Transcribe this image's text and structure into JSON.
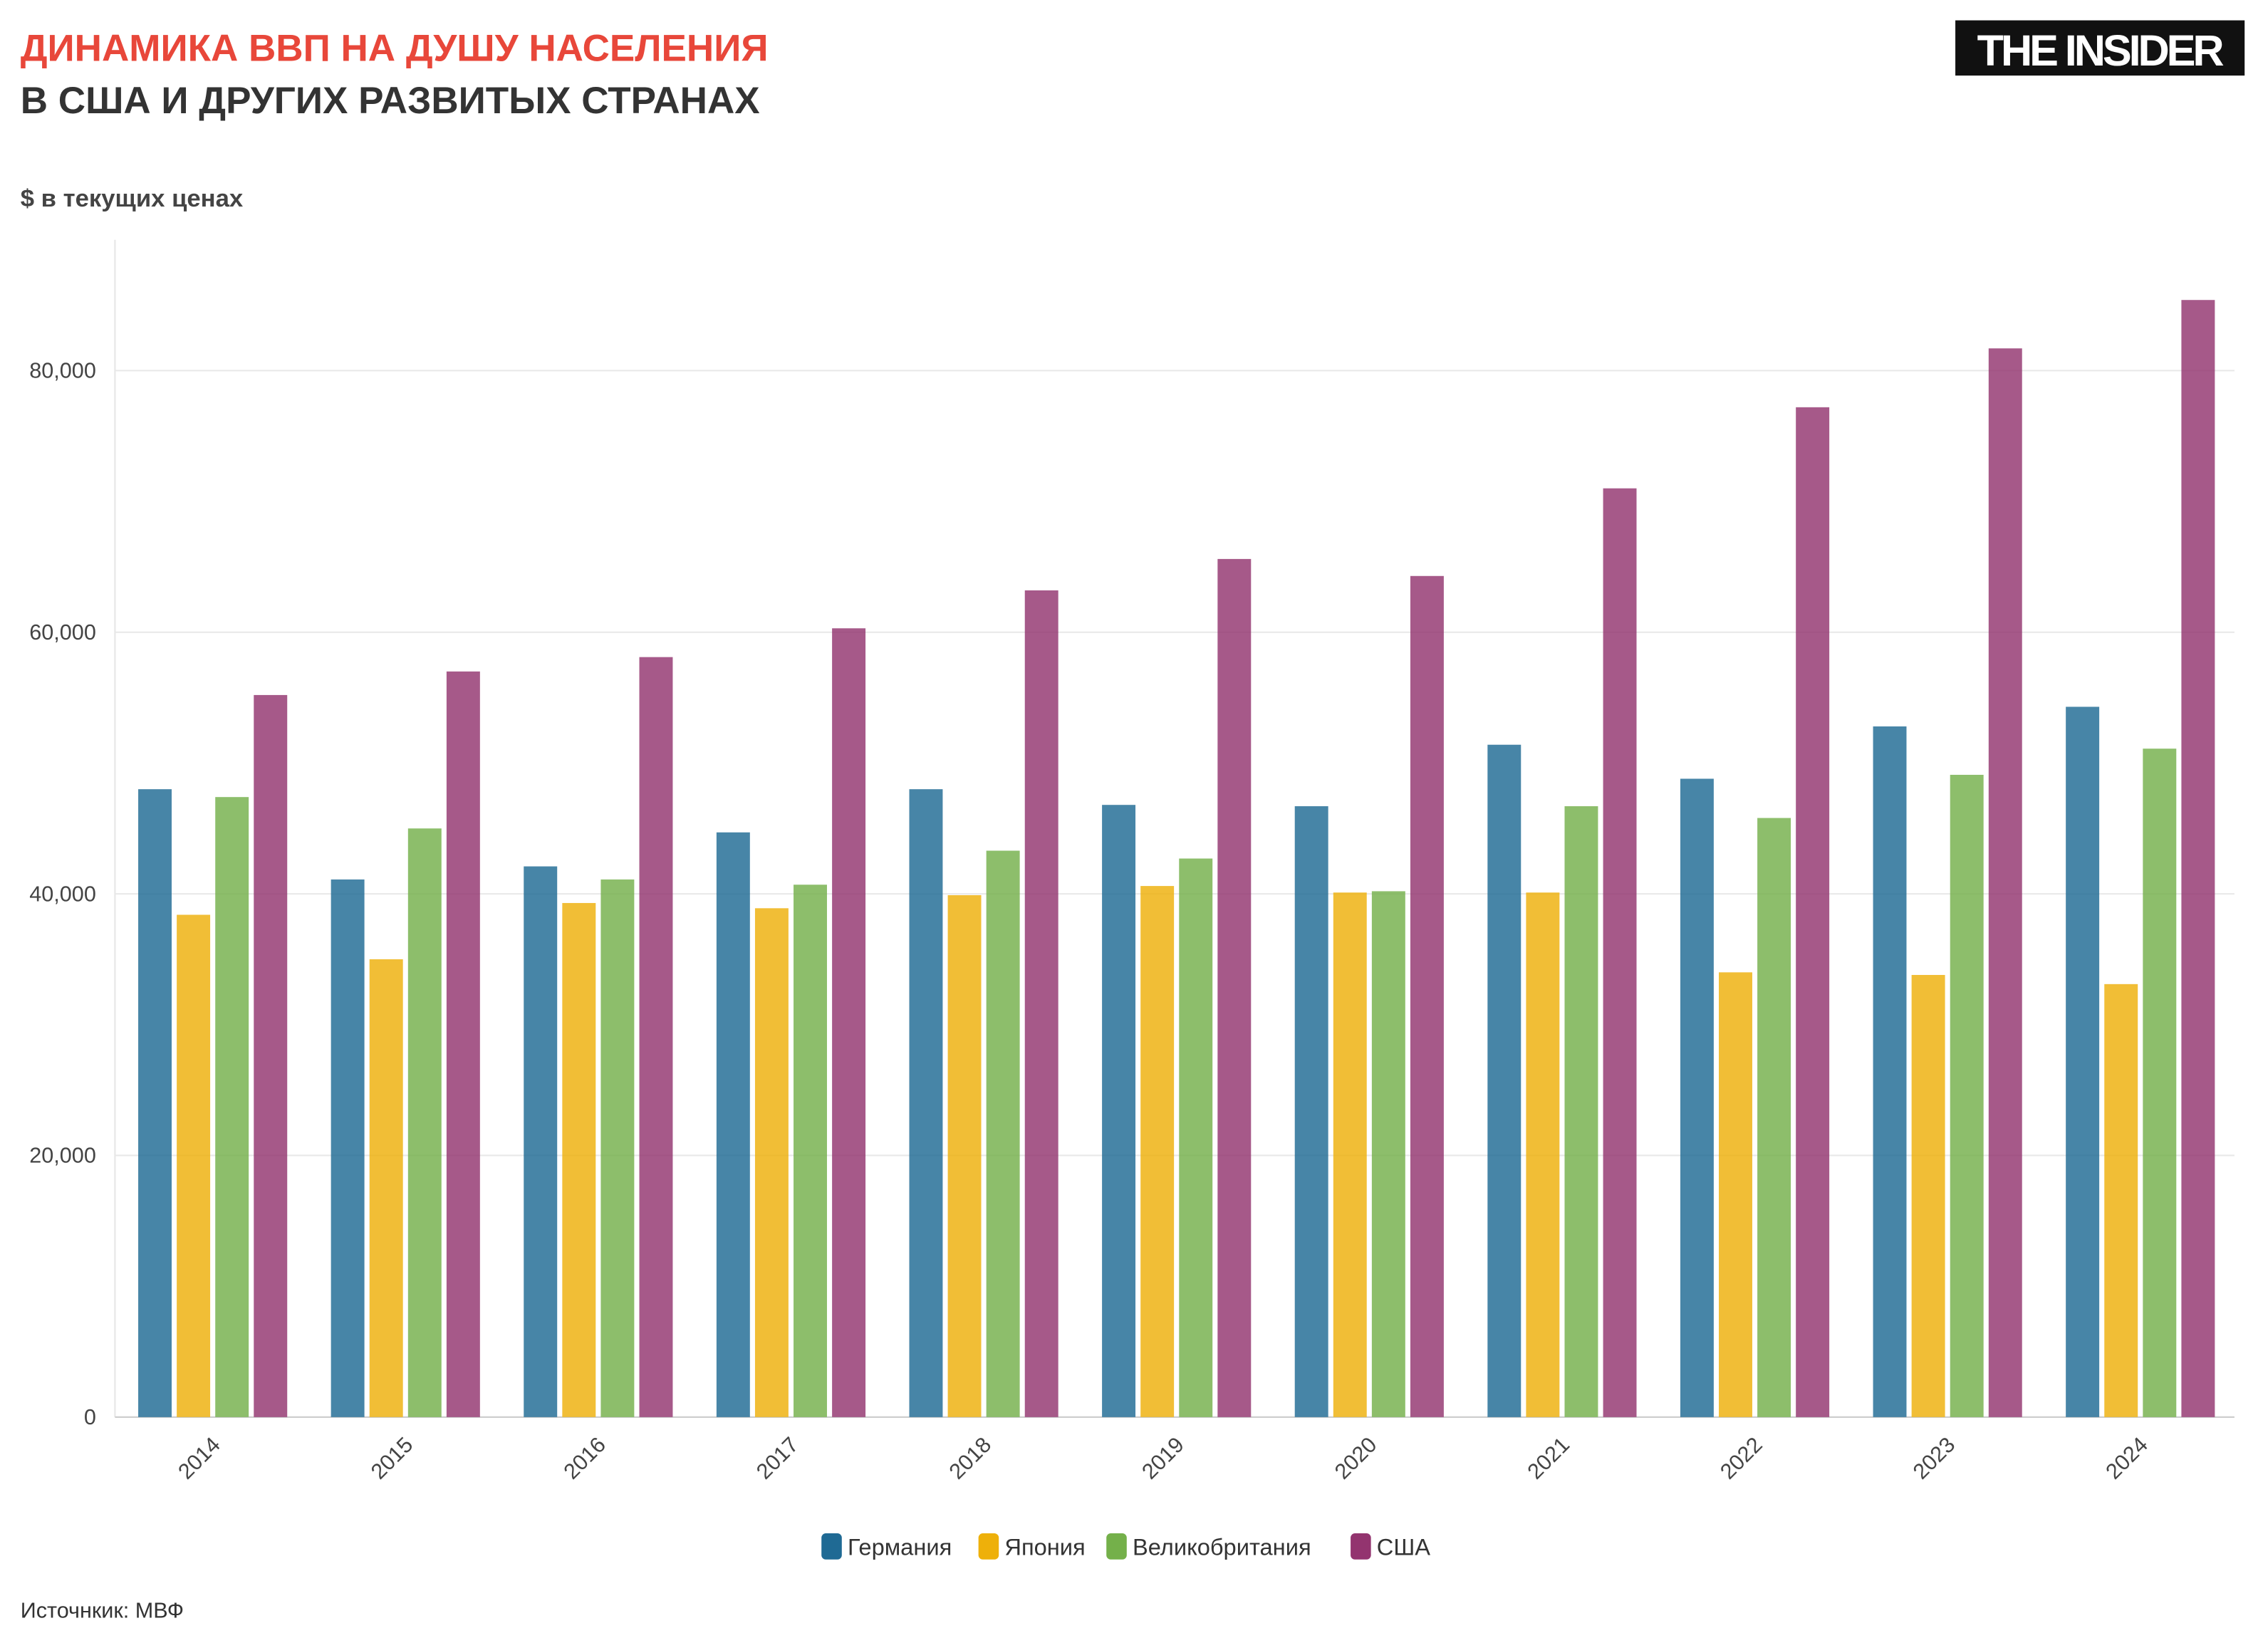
{
  "header": {
    "title": "ДИНАМИКА ВВП НА ДУШУ НАСЕЛЕНИЯ",
    "subtitle": "В США И ДРУГИХ РАЗВИТЫХ СТРАНАХ",
    "unit": "$ в текущих ценах",
    "logo": "THE INSIDER"
  },
  "footer": {
    "source": "Источнкик: МВФ"
  },
  "chart_data": {
    "type": "bar",
    "title": "ДИНАМИКА ВВП НА ДУШУ НАСЕЛЕНИЯ В США И ДРУГИХ РАЗВИТЫХ СТРАНАХ",
    "ylabel": "$ в текущих ценах",
    "xlabel": "",
    "ylim": [
      0,
      90000
    ],
    "yticks": [
      0,
      20000,
      40000,
      60000,
      80000
    ],
    "ytick_labels": [
      "0",
      "20,000",
      "40,000",
      "60,000",
      "80,000"
    ],
    "grid": true,
    "legend_position": "bottom",
    "categories": [
      "2014",
      "2015",
      "2016",
      "2017",
      "2018",
      "2019",
      "2020",
      "2021",
      "2022",
      "2023",
      "2024"
    ],
    "series": [
      {
        "name": "Германия",
        "color": "#1f6a94",
        "values": [
          48000,
          41100,
          42100,
          44700,
          48000,
          46800,
          46700,
          51400,
          48800,
          52800,
          54300
        ]
      },
      {
        "name": "Япония",
        "color": "#eeb00a",
        "values": [
          38400,
          35000,
          39300,
          38900,
          39900,
          40600,
          40100,
          40100,
          34000,
          33800,
          33100
        ]
      },
      {
        "name": "Великобритания",
        "color": "#74b04a",
        "values": [
          47400,
          45000,
          41100,
          40700,
          43300,
          42700,
          40200,
          46700,
          45800,
          49100,
          51100
        ]
      },
      {
        "name": "США",
        "color": "#93346f",
        "values": [
          55200,
          57000,
          58100,
          60300,
          63200,
          65600,
          64300,
          71000,
          77200,
          81700,
          85400
        ]
      }
    ]
  }
}
